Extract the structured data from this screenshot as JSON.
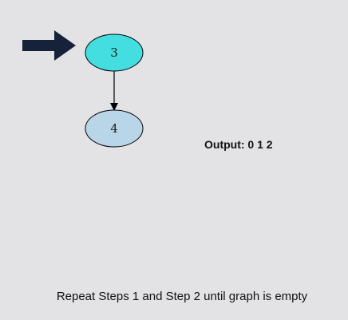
{
  "diagram": {
    "nodes": [
      {
        "id": "3",
        "label": "3",
        "fill": "#44dde0",
        "status": "current"
      },
      {
        "id": "4",
        "label": "4",
        "fill": "#b9d5e8",
        "status": "pending"
      }
    ],
    "edges": [
      {
        "from": "3",
        "to": "4"
      }
    ],
    "pointer": {
      "target": "3",
      "color": "#16213a"
    }
  },
  "output": {
    "label": "Output:",
    "values": "0 1 2",
    "text": "Output: 0 1 2"
  },
  "caption": "Repeat Steps 1 and Step 2 until graph is empty"
}
